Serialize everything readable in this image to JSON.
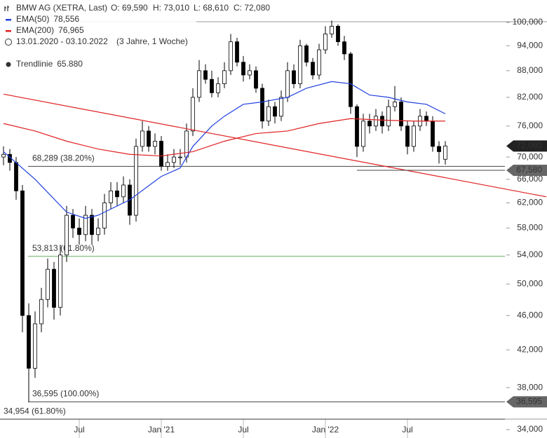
{
  "chart_data": {
    "type": "candlestick",
    "title": "BMW AG (XETRA, Last)",
    "ohlc_text": [
      "O: 69,590",
      "H: 73,010",
      "L: 68,610",
      "C: 72,080"
    ],
    "period": "13.01.2020 - 03.10.2022",
    "period_note": "(3 Jahre, 1 Woche)",
    "categories": [
      null,
      null,
      null,
      null,
      null,
      null,
      null,
      null,
      null,
      null,
      null,
      null,
      "Jul",
      null,
      null,
      null,
      null,
      null,
      null,
      null,
      null,
      null,
      null,
      null,
      null,
      "Jan '21",
      null,
      null,
      null,
      null,
      null,
      null,
      null,
      null,
      null,
      null,
      null,
      null,
      "Jul",
      null,
      null,
      null,
      null,
      null,
      null,
      null,
      null,
      null,
      null,
      null,
      null,
      "Jan '22",
      null,
      null,
      null,
      null,
      null,
      null,
      null,
      null,
      null,
      null,
      null,
      null,
      "Jul",
      null,
      null,
      null,
      null,
      null,
      null
    ],
    "open": [
      70000,
      70500,
      69000,
      64000,
      46000,
      40000,
      45000,
      48000,
      52000,
      47000,
      54000,
      60000,
      58000,
      57000,
      60000,
      57000,
      58000,
      62000,
      64000,
      63000,
      65000,
      60000,
      72000,
      75000,
      72000,
      73000,
      68300,
      69000,
      70000,
      70000,
      75000,
      82000,
      88000,
      86000,
      83000,
      85000,
      88000,
      95000,
      90000,
      87000,
      88000,
      84000,
      77000,
      80000,
      78000,
      82000,
      88000,
      85000,
      94000,
      90000,
      87000,
      93000,
      97000,
      99000,
      95000,
      92000,
      80000,
      72000,
      77000,
      76000,
      78000,
      76000,
      80000,
      81000,
      76000,
      72000,
      76000,
      78000,
      77000,
      72000,
      69590
    ],
    "high": [
      72000,
      71500,
      70000,
      65000,
      47500,
      46500,
      49500,
      53500,
      53000,
      55500,
      61500,
      61000,
      59500,
      61500,
      61000,
      59500,
      63500,
      65500,
      65500,
      66500,
      66000,
      73500,
      77000,
      76000,
      74500,
      74000,
      70500,
      71500,
      71500,
      76500,
      84000,
      90500,
      89500,
      88000,
      86500,
      90000,
      97000,
      96000,
      91500,
      89500,
      89000,
      85000,
      81500,
      81000,
      83500,
      90000,
      89500,
      95500,
      94500,
      91000,
      94500,
      99000,
      100500,
      99500,
      96500,
      92500,
      80500,
      78500,
      78500,
      79500,
      79000,
      81500,
      84500,
      82000,
      77000,
      77000,
      79500,
      79000,
      78000,
      73000,
      73010
    ],
    "low": [
      68500,
      67500,
      62500,
      44000,
      36595,
      39000,
      44000,
      47000,
      45500,
      46000,
      53000,
      56500,
      55500,
      56000,
      55500,
      56000,
      57000,
      61000,
      61500,
      62000,
      58500,
      59000,
      71000,
      71000,
      70500,
      67500,
      67500,
      68000,
      68500,
      69000,
      74000,
      81000,
      85000,
      82000,
      82000,
      84000,
      87000,
      89000,
      85500,
      86000,
      83000,
      75500,
      76000,
      76500,
      77000,
      81000,
      84000,
      84000,
      89000,
      86000,
      86000,
      92000,
      96000,
      94000,
      90500,
      78500,
      70000,
      71000,
      74500,
      75000,
      74500,
      75000,
      79000,
      75000,
      70500,
      71000,
      75000,
      76000,
      71000,
      68800,
      68610
    ],
    "close": [
      70500,
      69000,
      64000,
      46000,
      40000,
      45000,
      48000,
      52000,
      47000,
      54000,
      60000,
      58000,
      57000,
      60000,
      57000,
      58000,
      62000,
      64000,
      63000,
      65000,
      60000,
      72000,
      75000,
      72000,
      73000,
      68300,
      69000,
      70000,
      70000,
      75000,
      82000,
      88000,
      86000,
      83000,
      85000,
      88000,
      95000,
      90000,
      87000,
      88000,
      84000,
      77000,
      80000,
      78000,
      82000,
      88000,
      85000,
      94000,
      90000,
      87000,
      93000,
      97000,
      99000,
      95000,
      92000,
      80000,
      72000,
      77000,
      76000,
      78000,
      76000,
      80000,
      81000,
      76000,
      72000,
      76000,
      78000,
      77000,
      72000,
      71000,
      72080
    ],
    "lines": [
      {
        "name": "EMA(50)",
        "last": "78,556",
        "color": "#2040e0",
        "x": [
          0,
          5,
          10,
          13,
          15,
          20,
          25,
          28,
          30,
          33,
          35,
          38,
          41,
          45,
          48,
          52,
          55,
          58,
          61,
          64,
          67,
          70
        ],
        "values": [
          71000,
          66000,
          60500,
          59500,
          60000,
          62500,
          66500,
          68000,
          72000,
          76000,
          78000,
          80500,
          81000,
          82000,
          84000,
          85500,
          85000,
          82500,
          82000,
          81000,
          80500,
          78500
        ]
      },
      {
        "name": "EMA(200)",
        "last": "76,965",
        "color": "#e02020",
        "x": [
          0,
          5,
          10,
          15,
          20,
          25,
          30,
          35,
          40,
          45,
          50,
          55,
          60,
          65,
          70
        ],
        "values": [
          76500,
          75000,
          73000,
          71500,
          70500,
          70200,
          71000,
          73000,
          74500,
          75000,
          76500,
          77500,
          77200,
          77000,
          77000
        ]
      },
      {
        "name": "Trendlinie",
        "last": "65.880",
        "color": "#e02020",
        "x": [
          0,
          86
        ],
        "values": [
          82700,
          63000
        ]
      }
    ],
    "levels": [
      {
        "value": 68289,
        "label": "68,289 (38.20%)"
      },
      {
        "value": 53813,
        "label": "53,813 (61.80%)"
      },
      {
        "value": 36595,
        "label": "36,595 (100.00%)"
      },
      {
        "value": 34954,
        "label": "34,954 (61.80%)"
      }
    ],
    "price_tags": [
      {
        "value": 72080,
        "label": "72,080",
        "color": "#222222"
      },
      {
        "value": 67580,
        "label": "67,580",
        "color": "#666666"
      },
      {
        "value": 36595,
        "label": "36,595",
        "color": "#666666"
      }
    ],
    "log_scale": true,
    "ylim": [
      34000,
      100000
    ],
    "yticks": [
      {
        "value": 34000,
        "label": "34,000"
      },
      {
        "value": 38000,
        "label": "38,000"
      },
      {
        "value": 42000,
        "label": "42,000"
      },
      {
        "value": 46000,
        "label": "46,000"
      },
      {
        "value": 50000,
        "label": "50,000"
      },
      {
        "value": 54000,
        "label": "54,000"
      },
      {
        "value": 58000,
        "label": "58,000"
      },
      {
        "value": 62000,
        "label": "62,000"
      },
      {
        "value": 66000,
        "label": "66,000"
      },
      {
        "value": 70000,
        "label": "70,000"
      },
      {
        "value": 76000,
        "label": "76,000"
      },
      {
        "value": 82000,
        "label": "82,000"
      },
      {
        "value": 88000,
        "label": "88,000"
      },
      {
        "value": 94000,
        "label": "94,000"
      },
      {
        "value": 100000,
        "label": "100,000"
      }
    ]
  }
}
